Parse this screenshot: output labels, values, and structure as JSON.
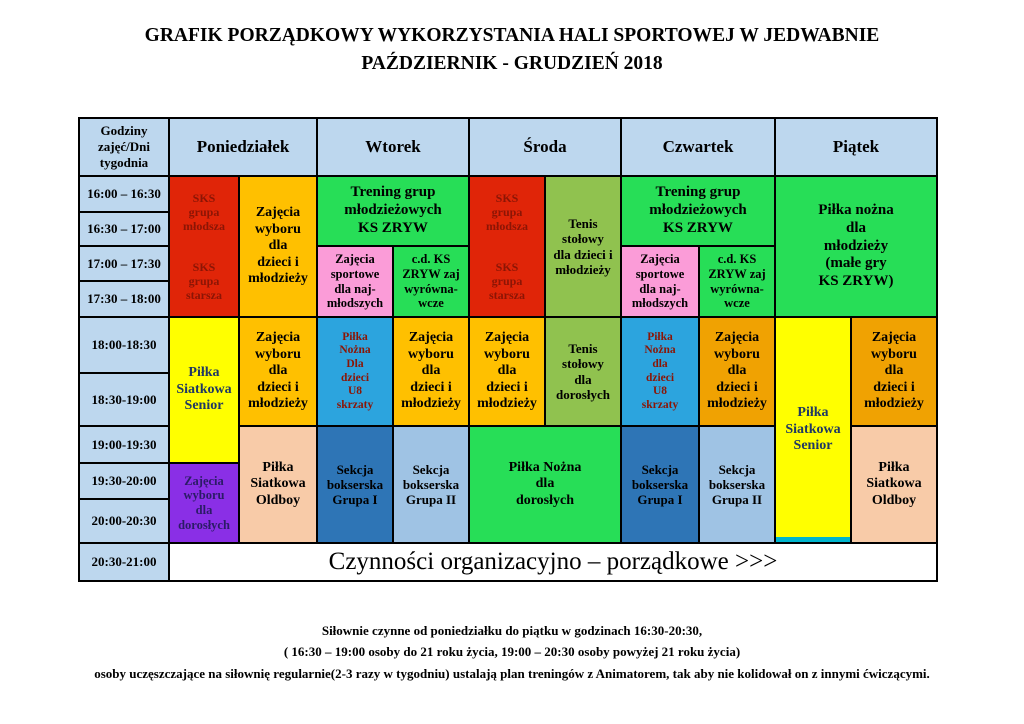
{
  "title": {
    "line1": "GRAFIK PORZĄDKOWY WYKORZYSTANIA  HALI SPORTOWEJ W JEDWABNIE",
    "line2": "PAŹDZIERNIK - GRUDZIEŃ  2018"
  },
  "table": {
    "corner": "Godziny\nzajęć/Dni\ntygodnia",
    "days": [
      "Poniedziałek",
      "Wtorek",
      "Środa",
      "Czwartek",
      "Piątek"
    ],
    "times": [
      "16:00 – 16:30",
      "16:30 – 17:00",
      "17:00 – 17:30",
      "17:30 – 18:00",
      "18:00-18:30",
      "18:30-19:00",
      "19:00-19:30",
      "19:30-20:00",
      "20:00-20:30",
      "20:30-21:00"
    ],
    "labels": {
      "sks_mlodsza": "SKS\ngrupa\nmłodsza",
      "sks_starsza": "SKS\ngrupa\nstarsza",
      "zajecia_wyboru_dzieci": "Zajęcia\nwyboru\ndla\ndzieci i\nmłodzieży",
      "zajecia_wyboru_dorosli": "Zajęcia\nwyboru\ndla\ndorosłych",
      "trening_grup": "Trening grup\nmłodzieżowych\nKS ZRYW",
      "zajecia_sportowe": "Zajęcia\nsportowe\ndla naj-\nmłodszych",
      "cd_ks_zryw": "c.d. KS\nZRYW zaj\nwyrówna-\nwcze",
      "pilka_u8_wtorek": "Piłka\nNożna\nDla\ndzieci\nU8\nskrzaty",
      "pilka_u8_czwartek": "Piłka\nNożna\ndla\ndzieci\nU8\nskrzaty",
      "sekcja_grupa1": "Sekcja\nbokserska\nGrupa I",
      "sekcja_grupa2": "Sekcja\nbokserska\nGrupa II",
      "tenis_dzieci": "Tenis\nstołowy\ndla dzieci i\nmłodzieży",
      "tenis_dorosli": "Tenis\nstołowy\ndla\ndorosłych",
      "pilka_nozna_dorosli": "Piłka Nożna\ndla\ndorosłych",
      "pilka_nozna_mlodziez": "Piłka nożna\ndla\nmłodzieży\n(małe gry\nKS ZRYW)",
      "siatkowa_senior": "Piłka\nSiatkowa\nSenior",
      "siatkowa_oldboy": "Piłka\nSiatkowa\nOldboy",
      "czynnosci": "Czynności organizacyjno – porządkowe >>>"
    }
  },
  "colors": {
    "header_blue": "#BDD7EE",
    "red": "#E02508",
    "dark_red_text": "#8B1505",
    "amber": "#FFC000",
    "dark_amber": "#F0A202",
    "green": "#27DE57",
    "olive_green": "#90C24F",
    "pink": "#FB9CD8",
    "sky_blue": "#2CA4DE",
    "dark_blue": "#2E75B6",
    "light_blue": "#9FC3E4",
    "yellow": "#FFFF00",
    "cyan_strip": "#00B6CE",
    "purple": "#8A2FE6",
    "navy_text": "#1F3864",
    "indigo_text": "#2B1B66",
    "peach": "#F8CBA8",
    "white": "#FFFFFF"
  },
  "footer": {
    "line1": "Siłownie czynne od poniedziałku do piątku w godzinach 16:30-20:30,",
    "line2": "( 16:30 – 19:00 osoby do 21 roku życia, 19:00 – 20:30 osoby powyżej 21 roku życia)",
    "line3": "osoby uczęszczające na siłownię regularnie(2-3 razy w tygodniu) ustalają plan treningów z Animatorem, tak aby nie kolidował on z innymi ćwiczącymi."
  }
}
